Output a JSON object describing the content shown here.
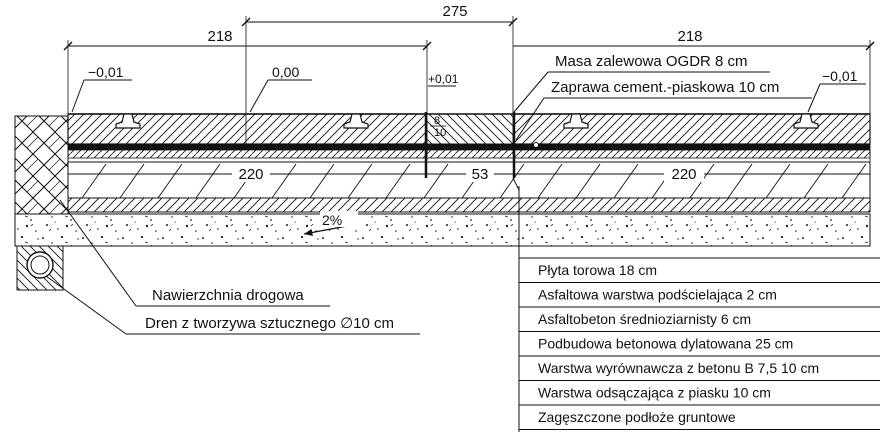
{
  "dimensions": {
    "top": "275",
    "left_span": "218",
    "right_span": "218",
    "bottom_left": "220",
    "bottom_middle": "53",
    "bottom_right": "220",
    "small_8": "8",
    "small_10": "10"
  },
  "elevations": {
    "left": "−0,01",
    "center": "0,00",
    "joint": "+0,01",
    "right": "−0,01"
  },
  "slope": "2%",
  "callouts": {
    "joint_fill": "Masa zalewowa OGDR 8 cm",
    "mortar": "Zaprawa cement.-piaskowa 10 cm",
    "road_surface": "Nawierzchnia drogowa",
    "drain": "Dren z tworzywa sztucznego ∅10 cm"
  },
  "layers": [
    "Płyta torowa 18 cm",
    "Asfaltowa warstwa podścielająca 2 cm",
    "Asfaltobeton średnioziarnisty 6 cm",
    "Podbudowa betonowa dylatowana 25 cm",
    "Warstwa wyrównawcza z betonu B 7,5 10 cm",
    "Warstwa odsączająca z piasku 10 cm",
    "Zagęszczone podłoże gruntowe"
  ],
  "colors": {
    "line": "#111111",
    "background": "#ffffff",
    "concrete_dots": "#222222"
  }
}
